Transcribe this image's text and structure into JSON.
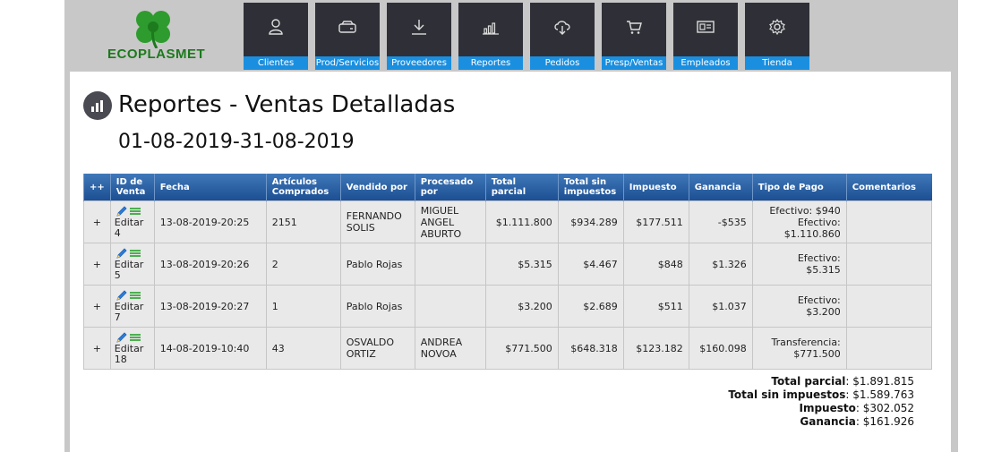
{
  "brand": {
    "name": "ECOPLASMET",
    "logo": "clover-logo",
    "color": "#1c7a1c"
  },
  "nav": [
    {
      "label": "Clientes",
      "icon": "user-icon"
    },
    {
      "label": "Prod/Servicios",
      "icon": "box-icon"
    },
    {
      "label": "Proveedores",
      "icon": "download-icon"
    },
    {
      "label": "Reportes",
      "icon": "bar-chart-icon"
    },
    {
      "label": "Pedidos",
      "icon": "cloud-download-icon"
    },
    {
      "label": "Presp/Ventas",
      "icon": "cart-icon"
    },
    {
      "label": "Empleados",
      "icon": "id-card-icon"
    },
    {
      "label": "Tienda",
      "icon": "gear-icon"
    }
  ],
  "page": {
    "title": "Reportes - Ventas Detalladas",
    "date_range": "01-08-2019-31-08-2019"
  },
  "table": {
    "headers": {
      "expand": "++",
      "id": "ID de Venta",
      "fecha": "Fecha",
      "articulos": "Artículos Comprados",
      "vendido": "Vendido por",
      "procesado": "Procesado por",
      "total_parcial": "Total parcial",
      "total_sin": "Total sin impuestos",
      "impuesto": "Impuesto",
      "ganancia": "Ganancia",
      "tipo_pago": "Tipo de Pago",
      "comentarios": "Comentarios"
    },
    "rows": [
      {
        "expand": "+",
        "edit_label": "Editar",
        "id": "4",
        "fecha": "13-08-2019-20:25",
        "articulos": "2151",
        "vendido": "FERNANDO SOLIS",
        "procesado": "MIGUEL ANGEL ABURTO",
        "total_parcial": "$1.111.800",
        "total_sin": "$934.289",
        "impuesto": "$177.511",
        "ganancia": "-$535",
        "pago1": "Efectivo: $940",
        "pago2": "Efectivo:",
        "pago3": "$1.110.860",
        "comentarios": ""
      },
      {
        "expand": "+",
        "edit_label": "Editar",
        "id": "5",
        "fecha": "13-08-2019-20:26",
        "articulos": "2",
        "vendido": "Pablo Rojas",
        "procesado": "",
        "total_parcial": "$5.315",
        "total_sin": "$4.467",
        "impuesto": "$848",
        "ganancia": "$1.326",
        "pago1": "Efectivo:",
        "pago2": "$5.315",
        "pago3": "",
        "comentarios": ""
      },
      {
        "expand": "+",
        "edit_label": "Editar",
        "id": "7",
        "fecha": "13-08-2019-20:27",
        "articulos": "1",
        "vendido": "Pablo Rojas",
        "procesado": "",
        "total_parcial": "$3.200",
        "total_sin": "$2.689",
        "impuesto": "$511",
        "ganancia": "$1.037",
        "pago1": "Efectivo:",
        "pago2": "$3.200",
        "pago3": "",
        "comentarios": ""
      },
      {
        "expand": "+",
        "edit_label": "Editar",
        "id": "18",
        "fecha": "14-08-2019-10:40",
        "articulos": "43",
        "vendido": "OSVALDO ORTIZ",
        "procesado": "ANDREA NOVOA",
        "total_parcial": "$771.500",
        "total_sin": "$648.318",
        "impuesto": "$123.182",
        "ganancia": "$160.098",
        "pago1": "Transferencia:",
        "pago2": "$771.500",
        "pago3": "",
        "comentarios": ""
      }
    ]
  },
  "totals": {
    "parcial_label": "Total parcial",
    "parcial_value": ": $1.891.815",
    "sin_label": "Total sin impuestos",
    "sin_value": ": $1.589.763",
    "impuesto_label": "Impuesto",
    "impuesto_value": ": $302.052",
    "ganancia_label": "Ganancia",
    "ganancia_value": ": $161.926"
  }
}
